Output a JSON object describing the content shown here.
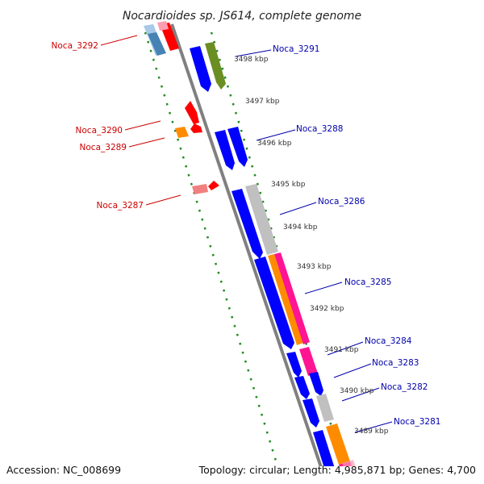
{
  "title": "Nocardioides sp. JS614, complete genome",
  "footer": {
    "accession": "Accession: NC_008699",
    "topology": "Topology: circular; Length: 4,985,871 bp; Genes: 4,700"
  },
  "kbp_labels": [
    "3498 kbp",
    "3497 kbp",
    "3496 kbp",
    "3495 kbp",
    "3494 kbp",
    "3493 kbp",
    "3492 kbp",
    "3491 kbp",
    "3490 kbp",
    "3489 kbp"
  ],
  "genes_reverse": [
    {
      "name": "Noca_3292",
      "color": "#ff0000"
    },
    {
      "name": "Noca_3290",
      "color": "#ff0000"
    },
    {
      "name": "Noca_3289",
      "color": "#ff8c00"
    },
    {
      "name": "Noca_3287",
      "color": "#ff0000"
    }
  ],
  "genes_forward": [
    {
      "name": "Noca_3291",
      "color": "#0000ff"
    },
    {
      "name": "Noca_3288",
      "color": "#0000ff"
    },
    {
      "name": "Noca_3286",
      "color": "#0000ff"
    },
    {
      "name": "Noca_3285",
      "color": "#0000ff"
    },
    {
      "name": "Noca_3284",
      "color": "#0000ff"
    },
    {
      "name": "Noca_3283",
      "color": "#0000ff"
    },
    {
      "name": "Noca_3282",
      "color": "#0000ff"
    },
    {
      "name": "Noca_3281",
      "color": "#0000ff"
    }
  ],
  "colors": {
    "backbone": "#808080",
    "tick": "#228b22",
    "reverse_label": "#cc0000",
    "forward_label": "#0000aa",
    "orange": "#ff8c00",
    "magenta": "#ff1493",
    "grey": "#c0c0c0",
    "green": "#6b8e23",
    "steel": "#4682b4"
  }
}
